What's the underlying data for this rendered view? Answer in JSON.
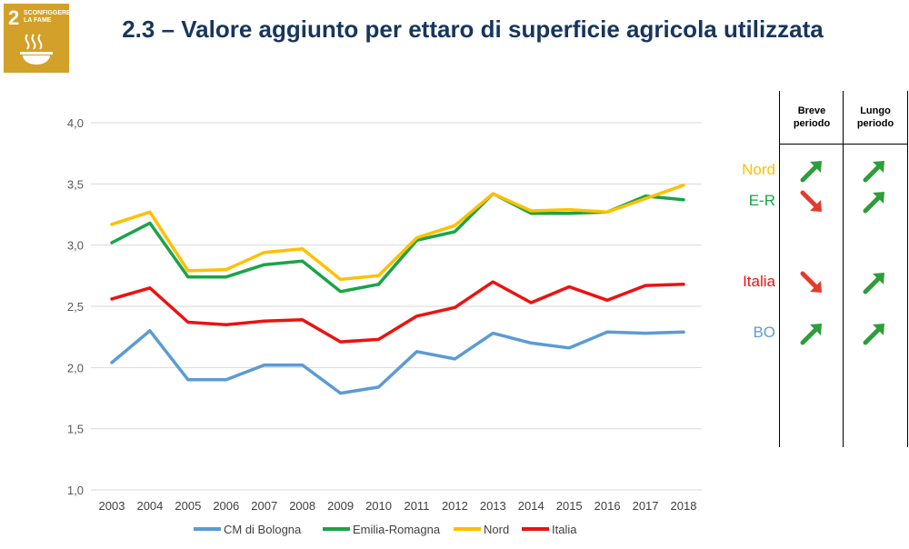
{
  "sdg": {
    "number": "2",
    "caption": "Sconfiggere la fame"
  },
  "title": "2.3 – Valore aggiunto per ettaro di superficie agricola utilizzata",
  "chart_data": {
    "type": "line",
    "x": [
      "2003",
      "2004",
      "2005",
      "2006",
      "2007",
      "2008",
      "2009",
      "2010",
      "2011",
      "2012",
      "2013",
      "2014",
      "2015",
      "2016",
      "2017",
      "2018"
    ],
    "ylim": [
      1.0,
      4.0
    ],
    "yticks": [
      "1,0",
      "1,5",
      "2,0",
      "2,5",
      "3,0",
      "3,5",
      "4,0"
    ],
    "ytick_values": [
      1.0,
      1.5,
      2.0,
      2.5,
      3.0,
      3.5,
      4.0
    ],
    "grid": true,
    "legend_position": "bottom",
    "series": [
      {
        "name": "CM di Bologna",
        "color": "#5b9bd5",
        "values": [
          2.04,
          2.3,
          1.9,
          1.9,
          2.02,
          2.02,
          1.79,
          1.84,
          2.13,
          2.07,
          2.28,
          2.2,
          2.16,
          2.29,
          2.28,
          2.29
        ]
      },
      {
        "name": "Emilia-Romagna",
        "color": "#1aa447",
        "values": [
          3.02,
          3.18,
          2.74,
          2.74,
          2.84,
          2.87,
          2.62,
          2.68,
          3.04,
          3.11,
          3.42,
          3.26,
          3.26,
          3.27,
          3.4,
          3.37
        ]
      },
      {
        "name": "Nord",
        "color": "#ffc000",
        "values": [
          3.17,
          3.27,
          2.79,
          2.8,
          2.94,
          2.97,
          2.72,
          2.75,
          3.06,
          3.16,
          3.42,
          3.28,
          3.29,
          3.27,
          3.38,
          3.49
        ]
      },
      {
        "name": "Italia",
        "color": "#ee1111",
        "values": [
          2.56,
          2.65,
          2.37,
          2.35,
          2.38,
          2.39,
          2.21,
          2.23,
          2.42,
          2.49,
          2.7,
          2.53,
          2.66,
          2.55,
          2.67,
          2.68
        ]
      }
    ]
  },
  "trend_table": {
    "headers": {
      "short": "Breve periodo",
      "long": "Lungo periodo"
    },
    "rows": [
      {
        "label": "Nord",
        "color": "#ffc000",
        "short": "up",
        "long": "up"
      },
      {
        "label": "E-R",
        "color": "#1aa447",
        "short": "down",
        "long": "up"
      },
      {
        "label": "Italia",
        "color": "#ee1111",
        "short": "down",
        "long": "up"
      },
      {
        "label": "BO",
        "color": "#5b9bd5",
        "short": "up",
        "long": "up"
      }
    ],
    "arrow_colors": {
      "up": "#2e9d3a",
      "down": "#e53b2c"
    }
  }
}
